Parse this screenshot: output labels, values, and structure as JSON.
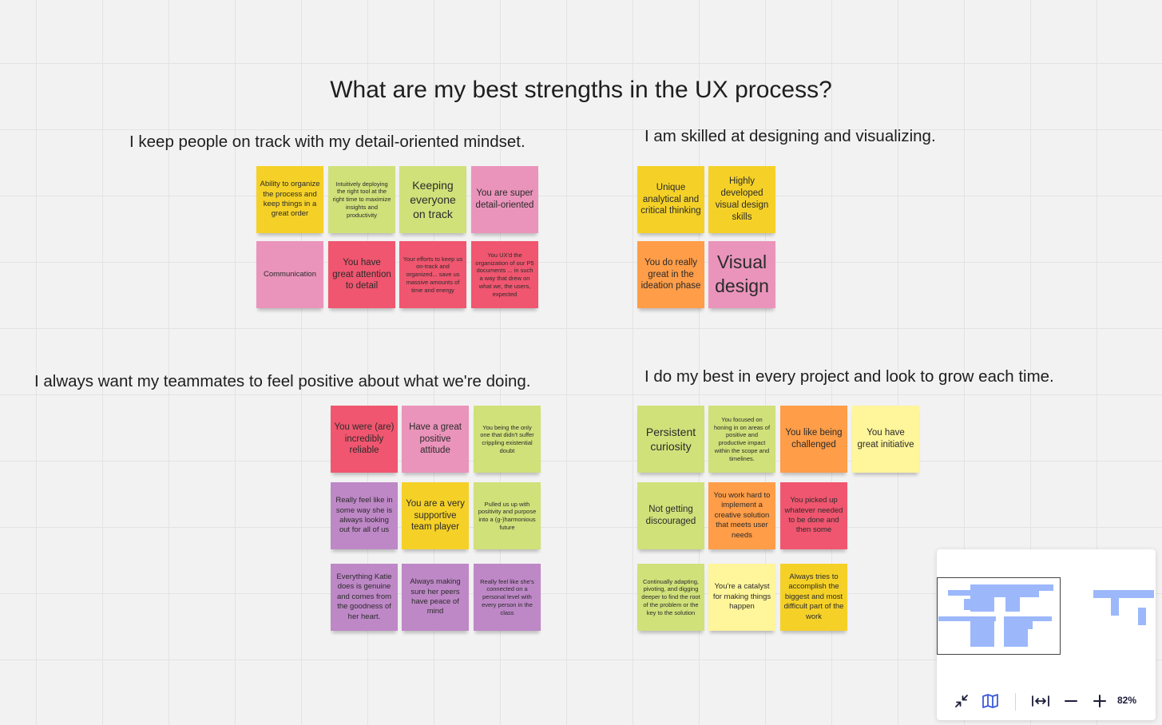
{
  "board": {
    "title": "What are my best strengths in the UX process?",
    "sections": [
      {
        "heading": "I keep people on track with my detail-oriented mindset.",
        "notes": [
          {
            "text": "Ability to organize the process and keep things in a great order",
            "color": "#f5d128"
          },
          {
            "text": "Intuitively deploying the right tool at the right time to maximize insights and productivity",
            "color": "#d0e17a"
          },
          {
            "text": "Keeping everyone on track",
            "color": "#d0e17a"
          },
          {
            "text": "You are super detail-oriented",
            "color": "#ea94bb"
          },
          {
            "text": "Communication",
            "color": "#ea94bb"
          },
          {
            "text": "You have great attention to detail",
            "color": "#f0566f"
          },
          {
            "text": "Your efforts to keep us on-track and organized... save us massive amounts of time and energy",
            "color": "#f0566f"
          },
          {
            "text": "You UX'd the organization of our P5 documents ... in such a way that drew on what we, the users, expected",
            "color": "#f0566f"
          }
        ]
      },
      {
        "heading": "I am skilled at designing and visualizing.",
        "notes": [
          {
            "text": "Unique analytical and critical thinking",
            "color": "#f5d128"
          },
          {
            "text": "Highly developed visual design skills",
            "color": "#f5d128"
          },
          {
            "text": "You do really great in the ideation phase",
            "color": "#ff9d48"
          },
          {
            "text": "Visual design",
            "color": "#ea94bb"
          }
        ]
      },
      {
        "heading": "I always want my teammates to feel positive about what we're doing.",
        "notes": [
          {
            "text": "You were (are) incredibly reliable",
            "color": "#f0566f"
          },
          {
            "text": "Have a great positive attitude",
            "color": "#ea94bb"
          },
          {
            "text": "You being the only one that didn't suffer crippling existential doubt",
            "color": "#d0e17a"
          },
          {
            "text": "Really feel like in some way she is always looking out for all of us",
            "color": "#be88c7"
          },
          {
            "text": "You are a very supportive team player",
            "color": "#f5d128"
          },
          {
            "text": "Pulled us up with positivity and purpose into a (g-)harmonious future",
            "color": "#d0e17a"
          },
          {
            "text": "Everything Katie does is genuine and comes from the goodness of her heart.",
            "color": "#be88c7"
          },
          {
            "text": "Always making sure her peers have peace of mind",
            "color": "#be88c7"
          },
          {
            "text": "Really feel like she's connected on a personal level with every person in the class",
            "color": "#be88c7"
          }
        ]
      },
      {
        "heading": "I do my best in every project and look to grow each time.",
        "notes": [
          {
            "text": "Persistent curiosity",
            "color": "#d0e17a"
          },
          {
            "text": "You focused on honing in on areas of positive and productive impact within the scope and timelines.",
            "color": "#d0e17a"
          },
          {
            "text": "You like being challenged",
            "color": "#ff9d48"
          },
          {
            "text": "You have great initiative",
            "color": "#fff59b"
          },
          {
            "text": "Not getting discouraged",
            "color": "#d0e17a"
          },
          {
            "text": "You work hard to implement a creative solution that meets user needs",
            "color": "#ff9d48"
          },
          {
            "text": "You picked up whatever needed to be done and then some",
            "color": "#f0566f"
          },
          {
            "text": "Continually adapting, pivoting, and digging deeper to find the root of the problem or the key to the solution",
            "color": "#d0e17a"
          },
          {
            "text": "You're a catalyst for making things happen",
            "color": "#fff59b"
          },
          {
            "text": "Always tries to accomplish the biggest and most difficult part of the work",
            "color": "#f5d128"
          }
        ]
      }
    ]
  },
  "controls": {
    "zoom_label": "82%",
    "icons": [
      "collapse-icon",
      "map-icon",
      "fit-width-icon",
      "zoom-out-icon",
      "zoom-in-icon"
    ],
    "minimap_color": "#9cb8fb"
  }
}
